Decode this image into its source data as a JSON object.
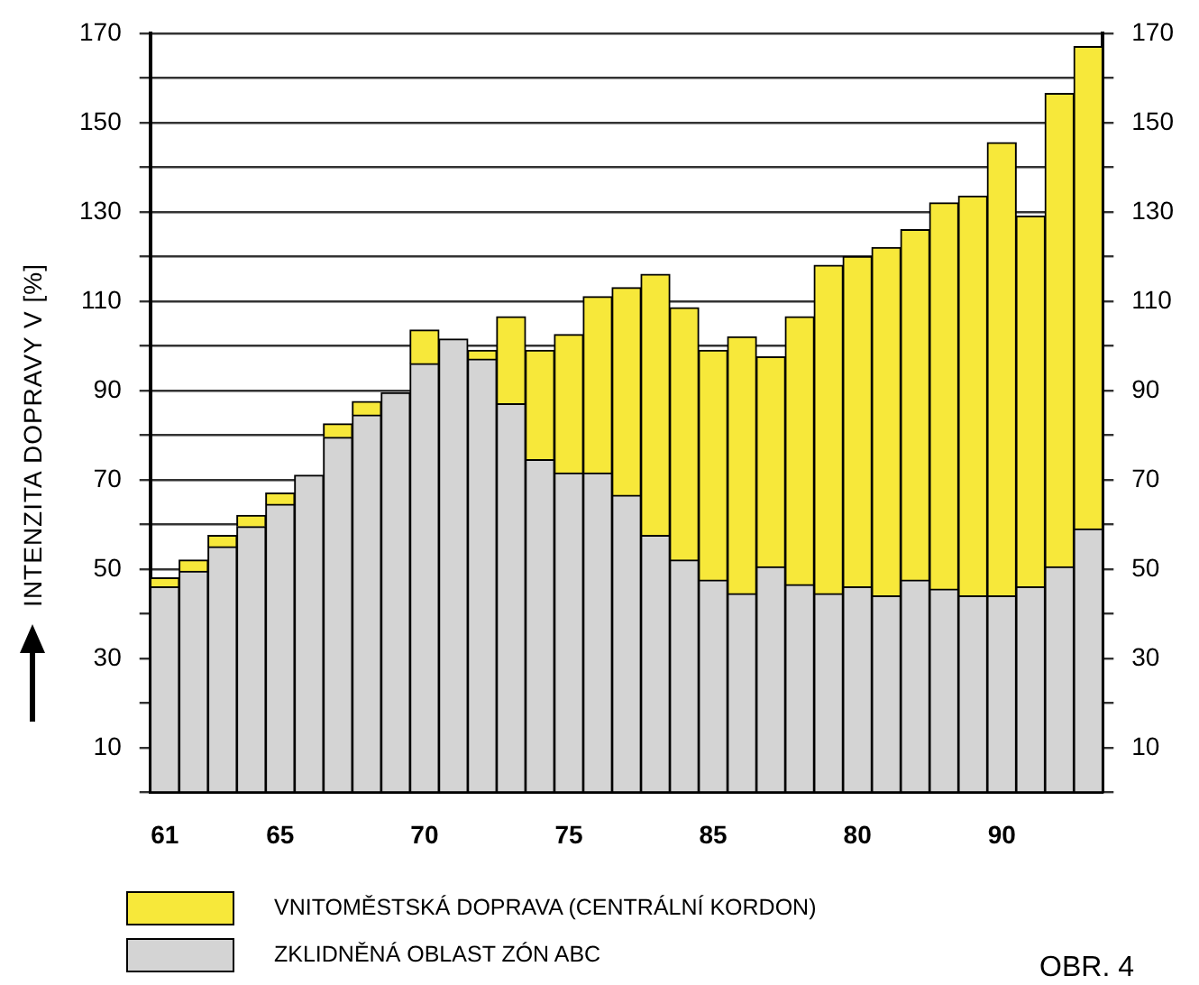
{
  "chart_data": {
    "type": "bar",
    "stacked": true,
    "ylabel": "INTENZITA DOPRAVY V [%]",
    "categories": [
      "61",
      null,
      null,
      null,
      "65",
      null,
      null,
      null,
      null,
      "70",
      null,
      null,
      null,
      null,
      "75",
      null,
      null,
      null,
      null,
      "85",
      null,
      null,
      null,
      null,
      "80",
      null,
      null,
      null,
      null,
      "90",
      null,
      null,
      null
    ],
    "series": [
      {
        "name": "ZKLIDNĚNÁ OBLAST ZÓN ABC",
        "color": "#d4d4d4",
        "values": [
          46,
          49.5,
          55,
          59.5,
          64.5,
          71,
          79.5,
          84.5,
          89.5,
          96,
          101.5,
          97,
          87,
          74.5,
          71.5,
          71.5,
          66.5,
          57.5,
          52,
          47.5,
          44.5,
          50.5,
          46.5,
          44.5,
          46,
          44,
          47.5,
          45.5,
          44,
          44,
          46,
          50.5,
          59
        ]
      },
      {
        "name": "VNITOMĚSTSKÁ DOPRAVA  (CENTRÁLNÍ KORDON)",
        "color": "#f7e83a",
        "values": [
          2,
          2.5,
          2.5,
          2.5,
          2.5,
          0,
          3,
          3,
          0,
          7.5,
          0,
          2,
          19.5,
          24.5,
          31,
          39.5,
          46.5,
          58.5,
          56.5,
          51.5,
          57.5,
          47,
          60,
          73.5,
          74,
          78,
          78.5,
          86.5,
          89.5,
          101.5,
          83,
          106,
          108
        ]
      }
    ],
    "ylim": [
      0,
      170
    ],
    "yticks": [
      {
        "value": 0,
        "label": null
      },
      10,
      {
        "value": 20,
        "label": null
      },
      30,
      {
        "value": 40,
        "label": null
      },
      50,
      {
        "value": 60,
        "label": null
      },
      70,
      {
        "value": 80,
        "label": null
      },
      90,
      {
        "value": 100,
        "label": null
      },
      110,
      {
        "value": 120,
        "label": null
      },
      130,
      {
        "value": 140,
        "label": null
      },
      150,
      {
        "value": 160,
        "label": null
      },
      170
    ],
    "y2lim": [
      0,
      170
    ],
    "y2ticks": [
      {
        "value": 0,
        "label": null
      },
      10,
      {
        "value": 20,
        "label": null
      },
      30,
      {
        "value": 40,
        "label": null
      },
      50,
      {
        "value": 60,
        "label": null
      },
      70,
      {
        "value": 80,
        "label": null
      },
      90,
      {
        "value": 100,
        "label": null
      },
      110,
      {
        "value": 120,
        "label": null
      },
      130,
      {
        "value": 140,
        "label": null
      },
      150,
      {
        "value": 160,
        "label": null
      },
      170
    ],
    "grid": "y",
    "legend": "bottom",
    "annotations": [
      "OBR. 4"
    ]
  }
}
